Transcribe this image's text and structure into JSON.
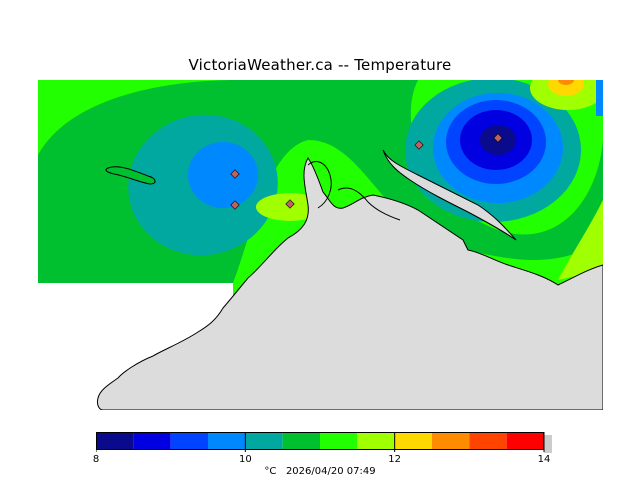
{
  "title": "VictoriaWeather.ca -- Temperature",
  "legend": {
    "unit_label": "°C",
    "timestamp": "2026/04/20 07:49",
    "tick_values": [
      8,
      10,
      12,
      14
    ],
    "tick_labels": [
      "8",
      "10",
      "12",
      "14"
    ],
    "range": [
      8,
      14
    ],
    "step": 0.5,
    "bins": [
      {
        "from": 8.0,
        "to": 8.5,
        "color": "#0a0a8c"
      },
      {
        "from": 8.5,
        "to": 9.0,
        "color": "#0000e0"
      },
      {
        "from": 9.0,
        "to": 9.5,
        "color": "#0044ff"
      },
      {
        "from": 9.5,
        "to": 10.0,
        "color": "#0088ff"
      },
      {
        "from": 10.0,
        "to": 10.5,
        "color": "#00a8a0"
      },
      {
        "from": 10.5,
        "to": 11.0,
        "color": "#00c030"
      },
      {
        "from": 11.0,
        "to": 11.5,
        "color": "#22ff00"
      },
      {
        "from": 11.5,
        "to": 12.0,
        "color": "#a0ff00"
      },
      {
        "from": 12.0,
        "to": 12.5,
        "color": "#ffd800"
      },
      {
        "from": 12.5,
        "to": 13.0,
        "color": "#ff8c00"
      },
      {
        "from": 13.0,
        "to": 13.5,
        "color": "#ff4400"
      },
      {
        "from": 13.5,
        "to": 14.0,
        "color": "#ff0000"
      }
    ]
  },
  "colors": {
    "land": "#dcdcdc",
    "coast": "#000000",
    "station_marker": "#c06060"
  },
  "stations_count": 5
}
